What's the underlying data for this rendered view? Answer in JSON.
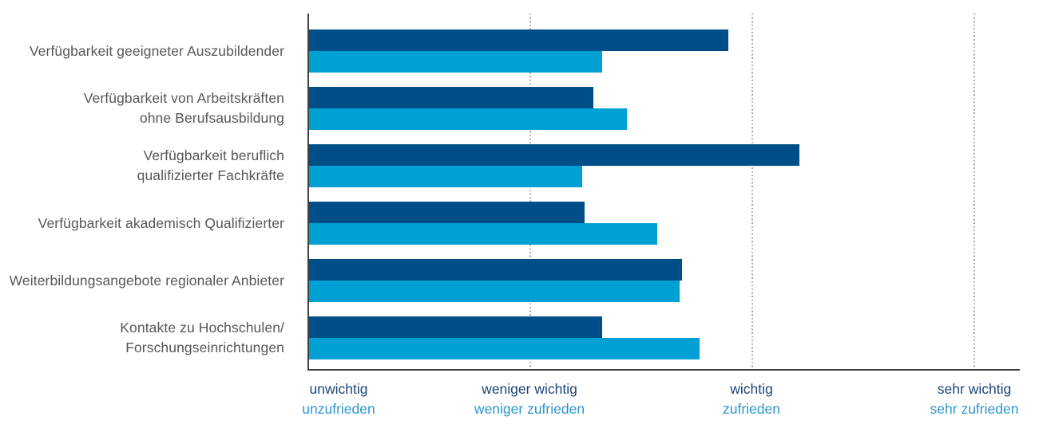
{
  "chart_data": {
    "type": "bar",
    "orientation": "horizontal",
    "title": "",
    "xlabel": "",
    "ylabel": "",
    "axis_range": [
      1,
      4.2
    ],
    "gridlines_at": [
      2,
      3,
      4
    ],
    "grid": "dotted-vertical",
    "legend_position": "none (series identified by colored axis label rows)",
    "categories": [
      [
        "Verfügbarkeit geeigneter Auszubildender"
      ],
      [
        "Verfügbarkeit von Arbeitskräften",
        "ohne Berufsausbildung"
      ],
      [
        "Verfügbarkeit beruflich",
        "qualifizierter Fachkräfte"
      ],
      [
        "Verfügbarkeit akademisch Qualifizierter"
      ],
      [
        "Weiterbildungsangebote regionaler Anbieter"
      ],
      [
        "Kontakte zu Hochschulen/",
        "Forschungseinrichtungen"
      ]
    ],
    "series": [
      {
        "id": "wichtig",
        "color": "#004e87",
        "values": [
          2.89,
          2.28,
          3.21,
          2.24,
          2.68,
          2.32
        ]
      },
      {
        "id": "zufrieden",
        "color": "#009fd4",
        "values": [
          2.32,
          2.43,
          2.23,
          2.57,
          2.67,
          2.76
        ]
      }
    ],
    "x_tick_labels": [
      {
        "line1": "unwichtig",
        "line2": "unzufrieden",
        "value": 1
      },
      {
        "line1": "weniger wichtig",
        "line2": "weniger zufrieden",
        "value": 2
      },
      {
        "line1": "wichtig",
        "line2": "zufrieden",
        "value": 3
      },
      {
        "line1": "sehr wichtig",
        "line2": "sehr zufrieden",
        "value": 4
      }
    ]
  },
  "colors": {
    "importance_bar": "#004e87",
    "satisfaction_bar": "#009fd4",
    "importance_tick_text": "#1c4577",
    "satisfaction_tick_text": "#2e96cf",
    "category_text": "#575756",
    "axis_line": "#3f3f3e",
    "gridline": "#9d9d9c"
  }
}
